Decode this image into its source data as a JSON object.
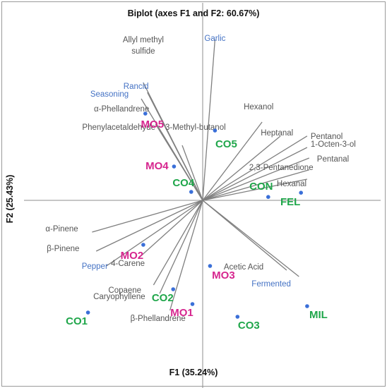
{
  "colors": {
    "variable_line": "#7f7f7f",
    "variable_label": "#555555",
    "sensory_label": "#4472c4",
    "observation_point": "#3a6fd8",
    "obs_green": "#1fa64a",
    "obs_magenta": "#d6258e",
    "axis": "#8c8c8c",
    "border": "#9a9a9a"
  },
  "chart_data": {
    "type": "biplot",
    "title": "Biplot (axes F1 and F2: 60.67%)",
    "xlabel": "F1 (35.24%)",
    "ylabel": "F2 (25.43%)",
    "xlim": [
      -4.5,
      4.5
    ],
    "ylim": [
      -4.5,
      4.5
    ],
    "grid": false,
    "legend": "none",
    "variables": [
      {
        "name": "Allyl methyl sulfide",
        "x": -1.45,
        "y": 2.78,
        "group": "volatile"
      },
      {
        "name": "Garlic",
        "x": 0.3,
        "y": 3.8,
        "group": "sensory"
      },
      {
        "name": "Rancid",
        "x": -1.35,
        "y": 2.55,
        "group": "sensory"
      },
      {
        "name": "Seasoning",
        "x": -1.5,
        "y": 2.4,
        "group": "sensory"
      },
      {
        "name": "α-Phellandrene",
        "x": -1.15,
        "y": 1.8,
        "group": "volatile"
      },
      {
        "name": "Phenylacetaldehyde",
        "x": -1.0,
        "y": 1.6,
        "group": "volatile"
      },
      {
        "name": "3-Methyl-butanol",
        "x": -0.5,
        "y": 1.3,
        "group": "volatile"
      },
      {
        "name": "Hexanol",
        "x": 1.45,
        "y": 1.85,
        "group": "volatile"
      },
      {
        "name": "Heptanal",
        "x": 1.9,
        "y": 1.52,
        "group": "volatile"
      },
      {
        "name": "Pentanol",
        "x": 2.55,
        "y": 1.52,
        "group": "volatile"
      },
      {
        "name": "1-Octen-3-ol",
        "x": 2.55,
        "y": 1.25,
        "group": "volatile"
      },
      {
        "name": "Pentanal",
        "x": 2.6,
        "y": 1.0,
        "group": "volatile"
      },
      {
        "name": "2,3-Pentanedione",
        "x": 2.6,
        "y": 0.72,
        "group": "volatile"
      },
      {
        "name": "Hexanal",
        "x": 2.55,
        "y": 0.5,
        "group": "volatile"
      },
      {
        "name": "α-Pinene",
        "x": -2.7,
        "y": -0.75,
        "group": "volatile"
      },
      {
        "name": "β-Pinene",
        "x": -2.6,
        "y": -1.2,
        "group": "volatile"
      },
      {
        "name": "Pepper",
        "x": -2.35,
        "y": -1.55,
        "group": "sensory"
      },
      {
        "name": "4-Carene",
        "x": -1.55,
        "y": -1.35,
        "group": "volatile"
      },
      {
        "name": "Copaene",
        "x": -1.2,
        "y": -2.0,
        "group": "volatile"
      },
      {
        "name": "Caryophyllene",
        "x": -1.05,
        "y": -2.2,
        "group": "volatile"
      },
      {
        "name": "β-Phellandrene",
        "x": -0.8,
        "y": -2.6,
        "group": "volatile"
      },
      {
        "name": "Acetic Acid",
        "x": 2.05,
        "y": -1.65,
        "group": "volatile"
      },
      {
        "name": "Fermented",
        "x": 2.35,
        "y": -1.8,
        "group": "sensory"
      }
    ],
    "observations": [
      {
        "name": "MO5",
        "x": -1.4,
        "y": 2.05,
        "group": "MO"
      },
      {
        "name": "CO5",
        "x": 0.3,
        "y": 1.65,
        "group": "CO"
      },
      {
        "name": "MO4",
        "x": -0.7,
        "y": 0.8,
        "group": "MO"
      },
      {
        "name": "CO4",
        "x": -0.28,
        "y": 0.2,
        "group": "CO"
      },
      {
        "name": "CON",
        "x": 1.6,
        "y": 0.08,
        "group": "CO"
      },
      {
        "name": "FEL",
        "x": 2.4,
        "y": 0.18,
        "group": "CO"
      },
      {
        "name": "MO2",
        "x": -1.45,
        "y": -1.05,
        "group": "MO"
      },
      {
        "name": "MO3",
        "x": 0.18,
        "y": -1.55,
        "group": "MO"
      },
      {
        "name": "CO2",
        "x": -0.72,
        "y": -2.1,
        "group": "CO"
      },
      {
        "name": "MO1",
        "x": -0.25,
        "y": -2.45,
        "group": "MO"
      },
      {
        "name": "CO3",
        "x": 0.85,
        "y": -2.75,
        "group": "CO"
      },
      {
        "name": "MIL",
        "x": 2.55,
        "y": -2.5,
        "group": "CO"
      },
      {
        "name": "CO1",
        "x": -2.8,
        "y": -2.65,
        "group": "CO"
      }
    ]
  }
}
